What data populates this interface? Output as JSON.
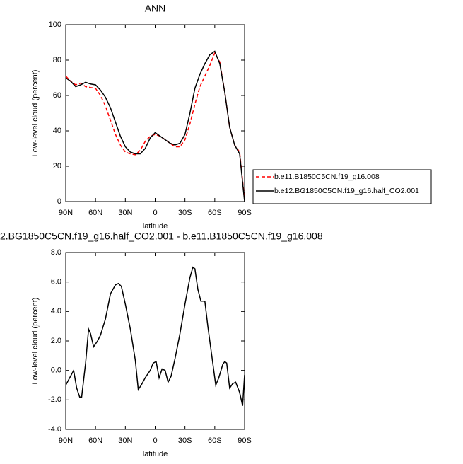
{
  "chart_data": [
    {
      "type": "line",
      "title": "ANN",
      "xlabel": "latitude",
      "ylabel": "Low-level cloud (percent)",
      "xlim": [
        90,
        -90
      ],
      "ylim": [
        0,
        100
      ],
      "xticks": [
        {
          "value": 90,
          "label": "90N"
        },
        {
          "value": 60,
          "label": "60N"
        },
        {
          "value": 30,
          "label": "30N"
        },
        0,
        {
          "value": -30,
          "label": "30S"
        },
        {
          "value": -60,
          "label": "60S"
        },
        {
          "value": -90,
          "label": "90S"
        }
      ],
      "yticks": [
        0,
        20,
        40,
        60,
        80,
        100
      ],
      "x": [
        90,
        85,
        80,
        75,
        70,
        65,
        60,
        55,
        50,
        45,
        40,
        35,
        30,
        25,
        20,
        15,
        10,
        5,
        0,
        -5,
        -10,
        -15,
        -20,
        -25,
        -30,
        -35,
        -40,
        -45,
        -50,
        -55,
        -60,
        -65,
        -70,
        -75,
        -80,
        -85,
        -90
      ],
      "series": [
        {
          "name": "b.e11.B1850C5CN.f19_g16.008",
          "color": "#ff0000",
          "dash": true,
          "values": [
            71,
            68,
            66,
            67,
            65,
            64.5,
            64,
            60,
            54,
            46,
            38,
            32,
            28,
            27,
            26.5,
            29,
            34,
            37,
            38,
            37,
            35,
            33,
            31,
            31,
            35,
            44,
            55,
            65,
            71,
            77,
            84,
            79,
            62,
            42,
            32,
            28,
            1
          ]
        },
        {
          "name": "b.e12.BG1850C5CN.f19_g16.half_CO2.001",
          "color": "#000000",
          "dash": false,
          "values": [
            70,
            68,
            65,
            66,
            67.5,
            66.5,
            66,
            63,
            59,
            53,
            45,
            37,
            31,
            28,
            27,
            27,
            30,
            36,
            39,
            37,
            35,
            33,
            32,
            33,
            38,
            50,
            64,
            72,
            78,
            83,
            85,
            78,
            62,
            42,
            32,
            27,
            0
          ]
        }
      ]
    },
    {
      "type": "line",
      "title": "2.BG1850C5CN.f19_g16.half_CO2.001 - b.e11.B1850C5CN.f19_g16.008",
      "xlabel": "latitude",
      "ylabel": "Low-level cloud (percent)",
      "xlim": [
        90,
        -90
      ],
      "ylim": [
        -4,
        8
      ],
      "xticks": [
        {
          "value": 90,
          "label": "90N"
        },
        {
          "value": 60,
          "label": "60N"
        },
        {
          "value": 30,
          "label": "30N"
        },
        0,
        {
          "value": -30,
          "label": "30S"
        },
        {
          "value": -60,
          "label": "60S"
        },
        {
          "value": -90,
          "label": "90S"
        }
      ],
      "yticks": [
        {
          "value": -4,
          "label": "-4.0"
        },
        {
          "value": -2,
          "label": "-2.0"
        },
        {
          "value": 0,
          "label": "0.0"
        },
        {
          "value": 2,
          "label": "2.0"
        },
        {
          "value": 4,
          "label": "4.0"
        },
        {
          "value": 6,
          "label": "6.0"
        },
        {
          "value": 8,
          "label": "8.0"
        }
      ],
      "x": [
        90,
        86,
        82,
        79,
        76,
        74,
        70,
        67,
        65,
        62,
        58,
        55,
        50,
        45,
        40,
        37,
        34,
        30,
        25,
        20,
        17,
        14,
        10,
        5,
        2,
        -1,
        -4,
        -7,
        -10,
        -13,
        -16,
        -20,
        -25,
        -30,
        -35,
        -38,
        -40,
        -43,
        -46,
        -50,
        -53,
        -57,
        -61,
        -64,
        -68,
        -70,
        -72,
        -75,
        -78,
        -81,
        -85,
        -88,
        -90
      ],
      "series": [
        {
          "name": null,
          "color": "#000000",
          "dash": false,
          "values": [
            -1.0,
            -0.5,
            0.0,
            -1.2,
            -1.8,
            -1.8,
            0.5,
            2.8,
            2.5,
            1.6,
            2.0,
            2.4,
            3.5,
            5.2,
            5.8,
            5.9,
            5.7,
            4.5,
            2.8,
            0.7,
            -1.3,
            -1.0,
            -0.5,
            0.0,
            0.5,
            0.6,
            -0.5,
            0.1,
            0.0,
            -0.8,
            -0.4,
            0.8,
            2.5,
            4.5,
            6.3,
            7.0,
            6.9,
            5.5,
            4.7,
            4.7,
            3.0,
            1.0,
            -1.0,
            -0.5,
            0.4,
            0.6,
            0.5,
            -1.2,
            -0.9,
            -0.8,
            -1.5,
            -2.4,
            -0.3
          ]
        }
      ]
    }
  ]
}
